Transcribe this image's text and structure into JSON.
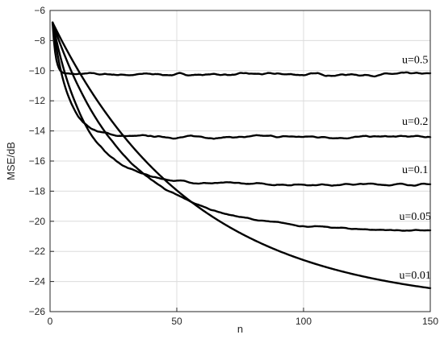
{
  "chart_data": {
    "type": "line",
    "title": "",
    "xlabel": "n",
    "ylabel": "MSE/dB",
    "xlim": [
      0,
      150
    ],
    "ylim": [
      -26,
      -6
    ],
    "xticks": [
      0,
      50,
      100,
      150
    ],
    "yticks": [
      -26,
      -24,
      -22,
      -20,
      -18,
      -16,
      -14,
      -12,
      -10,
      -8,
      -6
    ],
    "grid": true,
    "legend": "none",
    "series": [
      {
        "name": "u=0.5",
        "y_start": -6.8,
        "steady": -10.25,
        "tau": 1.2,
        "noise": 0.07
      },
      {
        "name": "u=0.2",
        "y_start": -6.8,
        "steady": -14.4,
        "tau": 6,
        "noise": 0.06
      },
      {
        "name": "u=0.1",
        "y_start": -6.8,
        "steady": -17.55,
        "tau": 13,
        "noise": 0.05
      },
      {
        "name": "u=0.05",
        "y_start": -6.8,
        "steady": -20.7,
        "tau": 28,
        "noise": 0.04
      },
      {
        "name": "u=0.01",
        "y_start": -6.8,
        "steady": -25.7,
        "tau": 55,
        "noise": 0.0
      }
    ],
    "annotations": [
      {
        "text": "u=0.5",
        "x": 144,
        "y": -9.5
      },
      {
        "text": "u=0.2",
        "x": 144,
        "y": -13.6
      },
      {
        "text": "u=0.1",
        "x": 144,
        "y": -16.8
      },
      {
        "text": "u=0.05",
        "x": 144,
        "y": -19.9
      },
      {
        "text": "u=0.01",
        "x": 144,
        "y": -23.8
      }
    ],
    "line_color": "#000000"
  }
}
